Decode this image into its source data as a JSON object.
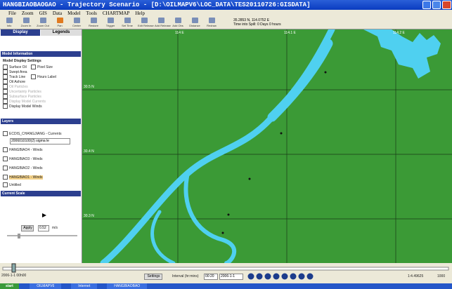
{
  "title_bar": {
    "title": "HANGBIAOBAOGAO - Trajectory Scenario - [D:\\OILMAPV6\\LOC_DATA\\TES20110726:GISDATA]"
  },
  "menu": [
    "File",
    "Zoom",
    "GIS",
    "Data",
    "Model",
    "Tools",
    "CHARTMAP",
    "Help"
  ],
  "toolbar": {
    "buttons": [
      "Info",
      "Zoom In",
      "Zoom Out",
      "Pan",
      "Center",
      "Restore",
      "Trigger",
      "Set Time",
      "Edit Release",
      "Add Release",
      "Add Obs",
      "Distance",
      "Redraw"
    ],
    "coordinates": "35.2853 N, 114.0752 E",
    "time": "Time into Spill: 0 Days 0 hours"
  },
  "left_panel": {
    "tabs": [
      "Display",
      "Legends"
    ],
    "model_information": "Model Information",
    "model_display_settings": "Model Display Settings",
    "options": [
      "Surface Oil",
      "Pixel Size",
      "Swept Area",
      "Track Line",
      "Hours Label",
      "Oil Ashore",
      "Oil Particles",
      "Uncertainty Particles",
      "Subsurface Particles",
      "Display Model Currents",
      "Display Model Winds"
    ],
    "layers_header": "Layers",
    "layers": [
      "ECDIS_CHANGJIANG - Currents",
      "2006010100(2) sigma le",
      "HANGBIAO4 - Winds",
      "HANGBIAO3 - Winds",
      "HANGBIAO2 - Winds",
      "HANGBIAO1 - Winds",
      "Untitled"
    ],
    "current_scale": "Current Scale",
    "apply": "Apply",
    "speed": "0.52",
    "unit": "m/s"
  },
  "map": {
    "lon_labels": [
      "114 E",
      "114.1 E",
      "114.2 E"
    ],
    "lat_labels": [
      "30.5 N",
      "30.4 N",
      "30.3 N"
    ]
  },
  "bottom": {
    "date": "2006-1-1 00h00",
    "settings": "Settings",
    "interval": "Interval (hr:mins)",
    "interval_value": "00:20",
    "date_value": "2006-1-1",
    "zoom": "1:4.49625",
    "page": "1000"
  },
  "taskbar": {
    "start": "start",
    "items": [
      "OILMAPV6",
      "Internet",
      "HANGBIAOBAO"
    ]
  }
}
